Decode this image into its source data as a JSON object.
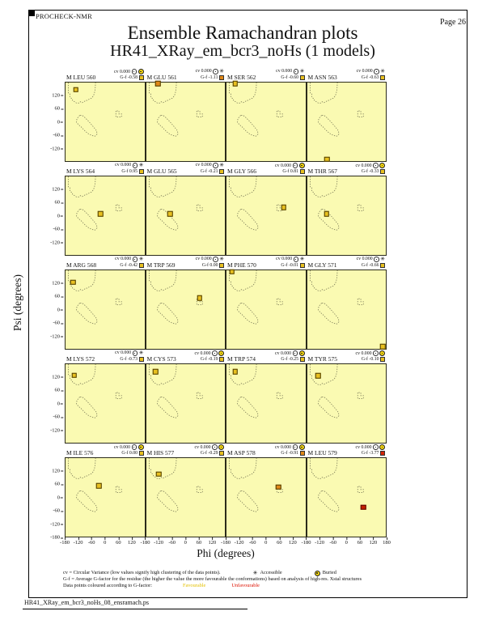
{
  "page": {
    "app": "PROCHECK-NMR",
    "page_label": "Page 26",
    "title": "Ensemble Ramachandran plots",
    "subtitle": "HR41_XRay_em_bcr3_noHs (1 models)",
    "footer_filename": "HR41_XRay_em_bcr3_noHs_08_ensramach.ps"
  },
  "axes": {
    "xlabel": "Phi (degrees)",
    "ylabel": "Psi (degrees)",
    "x_ticks": [
      -180,
      -120,
      -60,
      0,
      60,
      120
    ],
    "x_end_tick": 180,
    "y_ticks": [
      120,
      60,
      0,
      -60,
      -120
    ],
    "y_end_tick": -180,
    "xlim": [
      -180,
      180
    ],
    "ylim": [
      -180,
      180
    ]
  },
  "legend": {
    "line1": "cv = Circular Variance (low values signify high clustering of the data points).",
    "accessible_label": "Accessible",
    "buried_label": "Buried",
    "line2": "G-f = Average G-factor for the residue (the higher the value the more favourable the conformations) based on analysis of high-res. Xstal structures",
    "line3": "Data points coloured according to G-factor:",
    "favourable_label": "Favourable",
    "unfavourable_label": "Unfavourable"
  },
  "colors": {
    "plot_bg": "#fafab2",
    "region_line": "#80805c",
    "favourable": "#e8c020",
    "mid": "#e08818",
    "unfavourable": "#c41f02"
  },
  "chart_data": {
    "type": "scatter",
    "title": "Ensemble Ramachandran plots",
    "subtitle": "HR41_XRay_em_bcr3_noHs (1 models)",
    "xlabel": "Phi (degrees)",
    "ylabel": "Psi (degrees)",
    "xlim": [
      -180,
      180
    ],
    "ylim": [
      -180,
      180
    ],
    "grid": [
      5,
      4
    ],
    "panels": [
      {
        "residue": "M LEU 560",
        "cv_label": "cv 0.000",
        "gf_label": "G-f -0.58",
        "gf": -0.58,
        "access": "buried",
        "point": {
          "phi": -133,
          "psi": 147
        },
        "point_color": "favourable"
      },
      {
        "residue": "M GLU 561",
        "cv_label": "cv 0.000",
        "gf_label": "G-f -1.11",
        "gf": -1.11,
        "access": "accessible",
        "point": {
          "phi": -125,
          "psi": 176
        },
        "point_color": "mid"
      },
      {
        "residue": "M SER 562",
        "cv_label": "cv 0.000",
        "gf_label": "G-f -0.60",
        "gf": -0.6,
        "access": "accessible",
        "point": {
          "phi": -140,
          "psi": 176
        },
        "point_color": "favourable"
      },
      {
        "residue": "M ASN 563",
        "cv_label": "cv 0.000",
        "gf_label": "G-f -0.63",
        "gf": -0.63,
        "access": "accessible",
        "point": {
          "phi": -88,
          "psi": -172
        },
        "point_color": "favourable"
      },
      {
        "residue": "M LYS 564",
        "cv_label": "cv 0.000",
        "gf_label": "G-f 0.95",
        "gf": 0.95,
        "access": "accessible",
        "point": {
          "phi": -20,
          "psi": 8
        },
        "point_color": "favourable"
      },
      {
        "residue": "M GLU 565",
        "cv_label": "cv 0.000",
        "gf_label": "G-f -0.21",
        "gf": -0.21,
        "access": "accessible",
        "point": {
          "phi": -70,
          "psi": 8
        },
        "point_color": "favourable"
      },
      {
        "residue": "M GLY 566",
        "cv_label": "cv 0.000",
        "gf_label": "G-f 0.81",
        "gf": 0.81,
        "access": "buried",
        "point": {
          "phi": 82,
          "psi": 38
        },
        "point_color": "favourable"
      },
      {
        "residue": "M THR 567",
        "cv_label": "cv 0.000",
        "gf_label": "G-f -0.33",
        "gf": -0.33,
        "access": "buried",
        "point": {
          "phi": -90,
          "psi": 8
        },
        "point_color": "favourable"
      },
      {
        "residue": "M ARG 568",
        "cv_label": "cv 0.000",
        "gf_label": "G-f -0.42",
        "gf": -0.42,
        "access": "accessible",
        "point": {
          "phi": -146,
          "psi": 125
        },
        "point_color": "favourable"
      },
      {
        "residue": "M TRP 569",
        "cv_label": "cv 0.000",
        "gf_label": "G-f 0.00",
        "gf": 0.0,
        "access": "accessible",
        "point": {
          "phi": 64,
          "psi": 52
        },
        "point_color": "favourable"
      },
      {
        "residue": "M PHE 570",
        "cv_label": "cv 0.000",
        "gf_label": "G-f -0.01",
        "gf": -0.01,
        "access": "accessible",
        "point": {
          "phi": -155,
          "psi": 173
        },
        "point_color": "favourable"
      },
      {
        "residue": "M GLY 571",
        "cv_label": "cv 0.000",
        "gf_label": "G-f -0.66",
        "gf": -0.66,
        "access": "accessible",
        "point": {
          "phi": 166,
          "psi": -170
        },
        "point_color": "favourable"
      },
      {
        "residue": "M LYS 572",
        "cv_label": "cv 0.000",
        "gf_label": "G-f -0.73",
        "gf": -0.73,
        "access": "accessible",
        "point": {
          "phi": -140,
          "psi": 129
        },
        "point_color": "favourable"
      },
      {
        "residue": "M CYS 573",
        "cv_label": "cv 0.000",
        "gf_label": "G-f -0.19",
        "gf": -0.19,
        "access": "buried",
        "point": {
          "phi": -136,
          "psi": 146
        },
        "point_color": "favourable"
      },
      {
        "residue": "M TRP 574",
        "cv_label": "cv 0.000",
        "gf_label": "G-f -0.25",
        "gf": -0.25,
        "access": "buried",
        "point": {
          "phi": -140,
          "psi": 146
        },
        "point_color": "favourable"
      },
      {
        "residue": "M TYR 575",
        "cv_label": "cv 0.000",
        "gf_label": "G-f -0.10",
        "gf": -0.1,
        "access": "buried",
        "point": {
          "phi": -130,
          "psi": 127
        },
        "point_color": "favourable"
      },
      {
        "residue": "M ILE 576",
        "cv_label": "cv 0.000",
        "gf_label": "G-f 0.00",
        "gf": 0.0,
        "access": "buried",
        "point": {
          "phi": -28,
          "psi": 53
        },
        "point_color": "favourable"
      },
      {
        "residue": "M HIS 577",
        "cv_label": "cv 0.000",
        "gf_label": "G-f -0.29",
        "gf": -0.29,
        "access": "buried",
        "point": {
          "phi": -121,
          "psi": 106
        },
        "point_color": "favourable"
      },
      {
        "residue": "M ASP 578",
        "cv_label": "cv 0.000",
        "gf_label": "G-f -0.91",
        "gf": -0.91,
        "access": "buried",
        "point": {
          "phi": 57,
          "psi": 48
        },
        "point_color": "mid"
      },
      {
        "residue": "M LEU 579",
        "cv_label": "cv 0.000",
        "gf_label": "G-f -3.77",
        "gf": -3.77,
        "access": "buried",
        "point": {
          "phi": 78,
          "psi": -45
        },
        "point_color": "unfavourable"
      }
    ]
  }
}
